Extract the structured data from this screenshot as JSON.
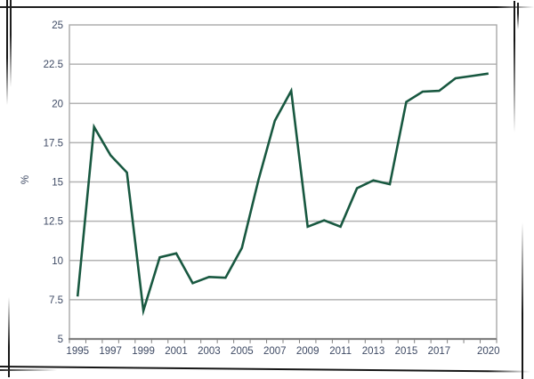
{
  "page": {
    "background": "#ffffff",
    "frame_color": "#161616"
  },
  "chart_data": {
    "type": "line",
    "title": "",
    "ylabel": "%",
    "xlabel": "",
    "x": [
      1995,
      1996,
      1997,
      1998,
      1999,
      2000,
      2001,
      2002,
      2003,
      2004,
      2005,
      2006,
      2007,
      2008,
      2009,
      2010,
      2011,
      2012,
      2013,
      2014,
      2015,
      2016,
      2017,
      2018,
      2019,
      2020
    ],
    "values": [
      7.7,
      18.5,
      16.7,
      15.6,
      6.8,
      10.2,
      10.45,
      8.55,
      8.95,
      8.9,
      10.8,
      15.1,
      18.9,
      20.8,
      12.15,
      12.55,
      12.15,
      14.6,
      15.1,
      14.85,
      20.1,
      20.75,
      20.8,
      21.6,
      21.75,
      21.9
    ],
    "ylim": [
      5,
      25
    ],
    "yticks": [
      5,
      7.5,
      10,
      12.5,
      15,
      17.5,
      20,
      22.5,
      25
    ],
    "ytick_labels": [
      "5",
      "7.5",
      "10",
      "12.5",
      "15",
      "17.5",
      "20",
      "22.5",
      "25"
    ],
    "xtick_labeled_years": [
      1995,
      1997,
      1999,
      2001,
      2003,
      2005,
      2007,
      2009,
      2011,
      2013,
      2015,
      2017,
      2020
    ],
    "grid": true,
    "legend_position": "none",
    "colors": {
      "line": "#185840",
      "grid": "#b3b3b3",
      "plot_border": "#a8a8a8",
      "axis": "#7f7f7f",
      "tick_label": "#3e4a64"
    }
  }
}
